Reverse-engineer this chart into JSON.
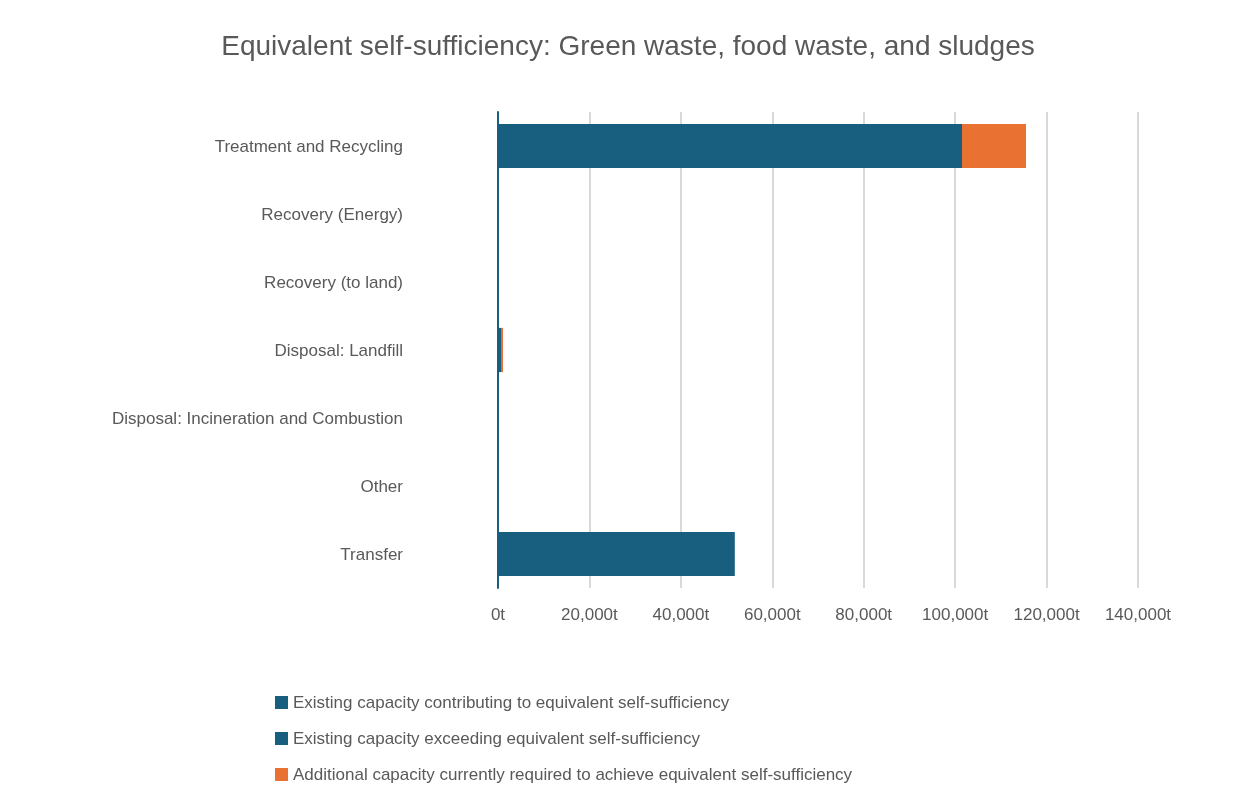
{
  "chart_data": {
    "type": "bar",
    "orientation": "horizontal",
    "stacked": true,
    "title": "Equivalent self-sufficiency: Green waste, food waste, and sludges",
    "categories": [
      "Treatment and Recycling",
      "Recovery (Energy)",
      "Recovery (to land)",
      "Disposal: Landfill",
      "Disposal: Incineration and Combustion",
      "Other",
      "Transfer"
    ],
    "series": [
      {
        "name": "Existing capacity contributing to equivalent self-sufficiency",
        "color": "#175e7f",
        "values": [
          101500,
          0,
          0,
          800,
          0,
          0,
          0
        ]
      },
      {
        "name": "Existing capacity exceeding equivalent self-sufficiency",
        "color": "#175e7f",
        "values": [
          0,
          0,
          0,
          0,
          0,
          0,
          51800
        ]
      },
      {
        "name": "Additional capacity currently required to achieve equivalent self-sufficiency",
        "color": "#e97132",
        "values": [
          14000,
          0,
          0,
          300,
          0,
          0,
          0
        ]
      }
    ],
    "xlim": [
      0,
      140000
    ],
    "xticks": [
      {
        "value": 0,
        "label": "0t"
      },
      {
        "value": 20000,
        "label": "20,000t"
      },
      {
        "value": 40000,
        "label": "40,000t"
      },
      {
        "value": 60000,
        "label": "60,000t"
      },
      {
        "value": 80000,
        "label": "80,000t"
      },
      {
        "value": 100000,
        "label": "100,000t"
      },
      {
        "value": 120000,
        "label": "120,000t"
      },
      {
        "value": 140000,
        "label": "140,000t"
      }
    ],
    "grid": "x",
    "legend": "bottom"
  }
}
